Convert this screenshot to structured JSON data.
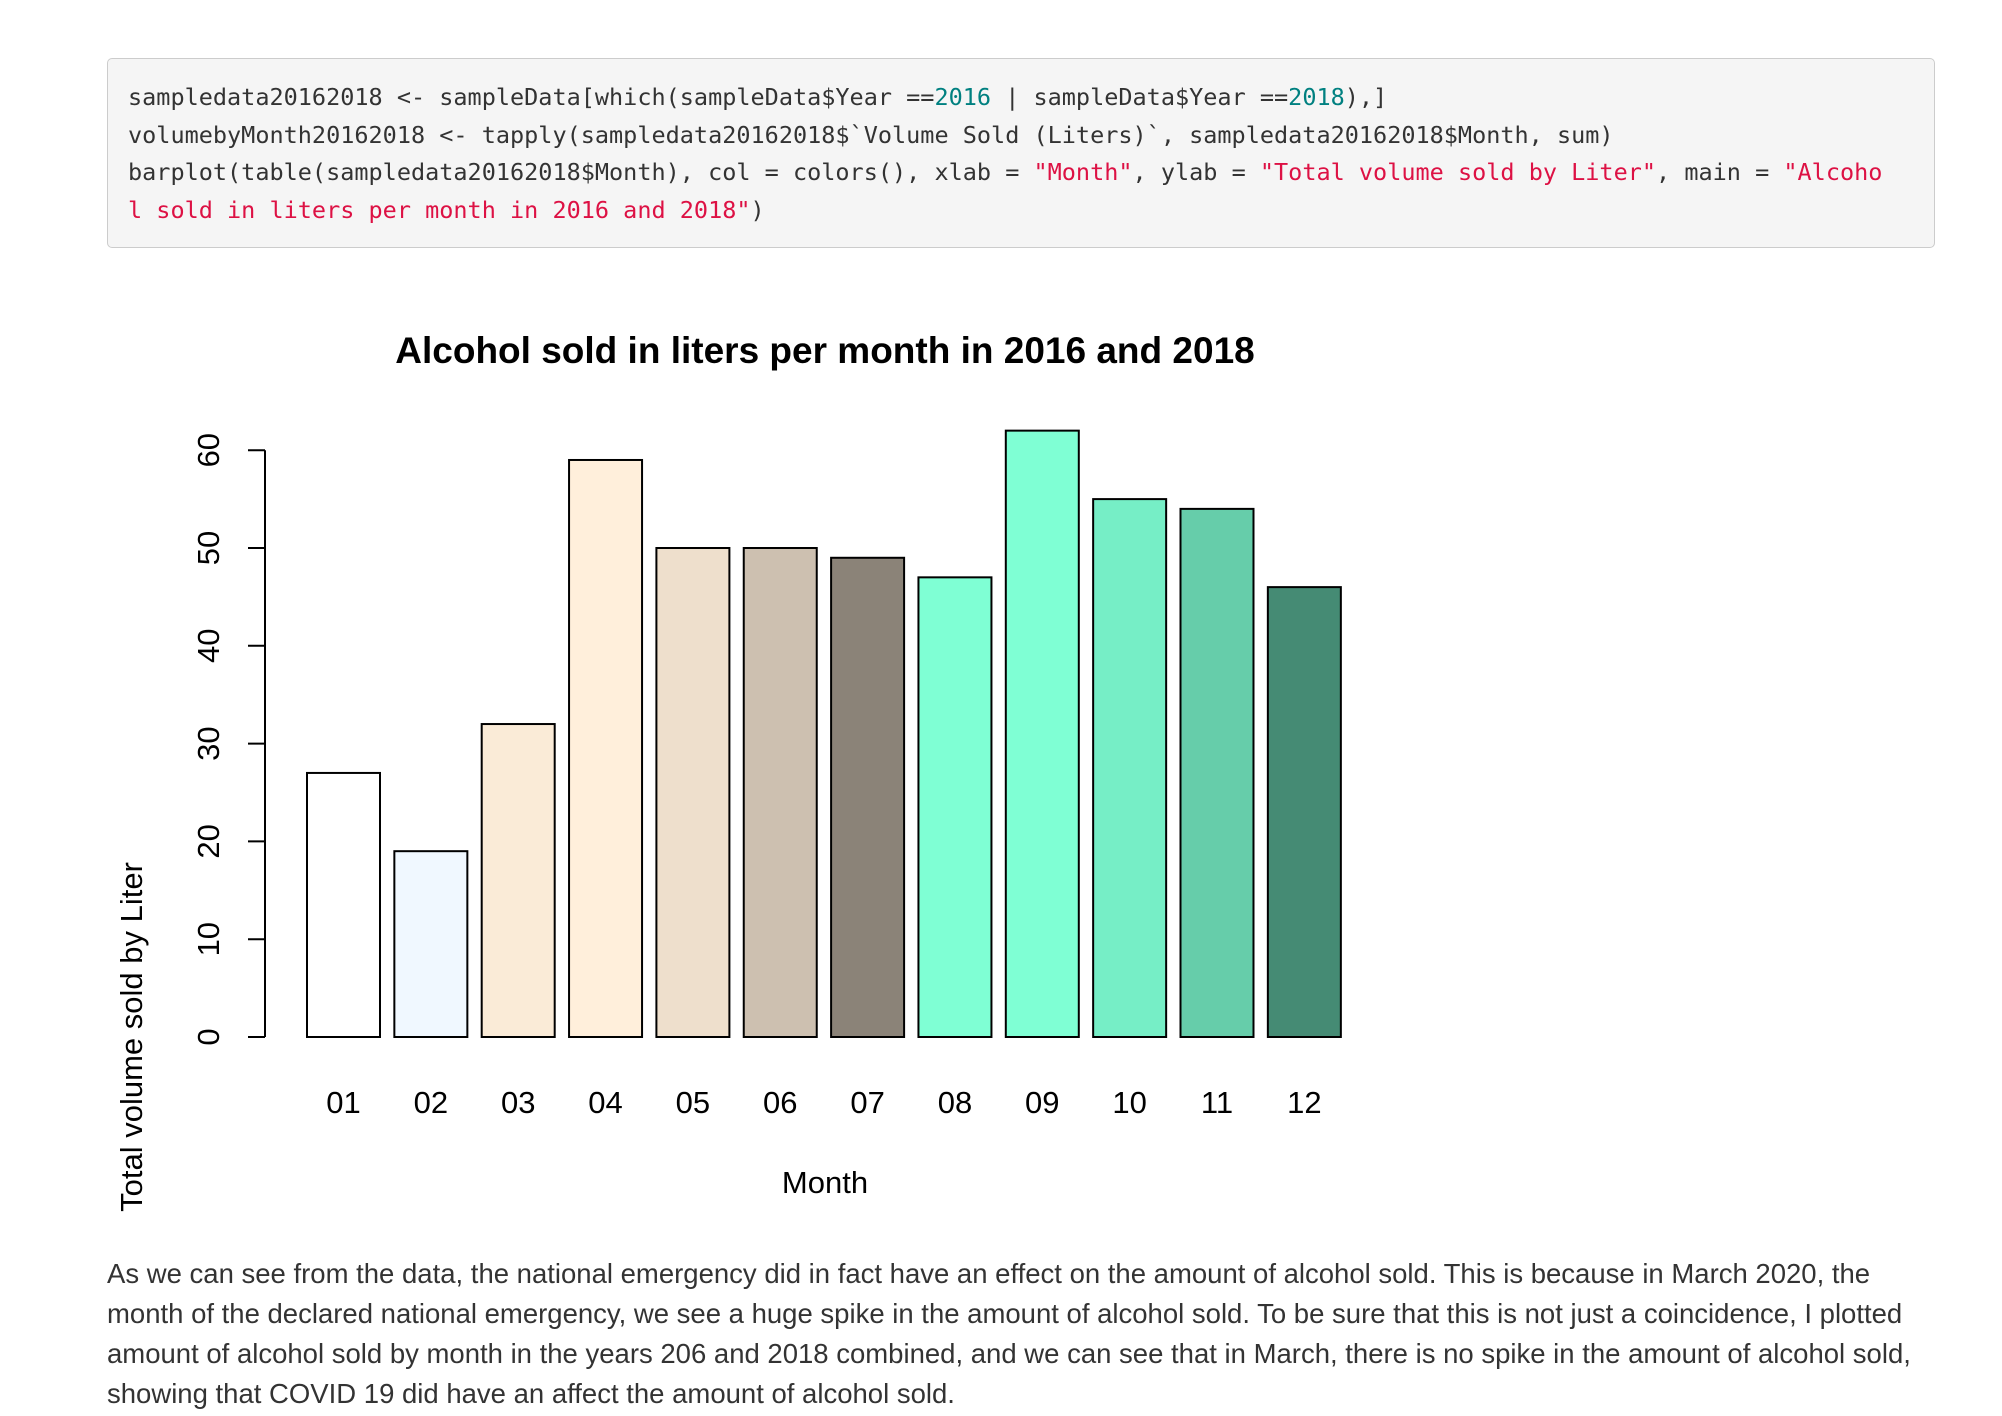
{
  "code": {
    "line1": {
      "a": "sampledata20162018 <- sampleData[which(sampleData$Year ==",
      "n1": "2016",
      "b": " | sampleData$Year ==",
      "n2": "2018",
      "c": "),]"
    },
    "line2": {
      "a": "volumebyMonth20162018 <- tapply(sampledata20162018$`Volume Sold (Liters)`, sampledata20162018$Month, sum)"
    },
    "line3": {
      "a": "barplot(table(sampledata20162018$Month), col = colors(), xlab = ",
      "s1": "\"Month\"",
      "b": ", ylab = ",
      "s2": "\"Total volume sold by Liter\"",
      "c": ", main = ",
      "s3": "\"Alcoho"
    },
    "line4": {
      "s1": "l sold in liters per month in 2016 and 2018\"",
      "a": ")"
    }
  },
  "chart_data": {
    "type": "bar",
    "title": "Alcohol sold in liters per month in 2016 and 2018",
    "xlabel": "Month",
    "ylabel": "Total volume sold by Liter",
    "categories": [
      "01",
      "02",
      "03",
      "04",
      "05",
      "06",
      "07",
      "08",
      "09",
      "10",
      "11",
      "12"
    ],
    "values": [
      27,
      19,
      32,
      59,
      50,
      50,
      49,
      47,
      62,
      55,
      54,
      46
    ],
    "colors": [
      "#FFFFFF",
      "#F0F8FF",
      "#FAEBD7",
      "#FFEFDB",
      "#EEDFCC",
      "#CDC0B0",
      "#8B8378",
      "#7FFFD4",
      "#7FFFD4",
      "#76EEC6",
      "#66CDAA",
      "#458B74"
    ],
    "yticks": [
      0,
      10,
      20,
      30,
      40,
      50,
      60
    ],
    "ylim": [
      0,
      62
    ],
    "grid": false,
    "legend": "none"
  },
  "paragraph": "As we can see from the data, the national emergency did in fact have an effect on the amount of alcohol sold. This is because in March 2020, the month of the declared national emergency, we see a huge spike in the amount of alcohol sold. To be sure that this is not just a coincidence, I plotted amount of alcohol sold by month in the years 206 and 2018 combined, and we can see that in March, there is no spike in the amount of alcohol sold, showing that COVID 19 did have an affect the amount of alcohol sold."
}
